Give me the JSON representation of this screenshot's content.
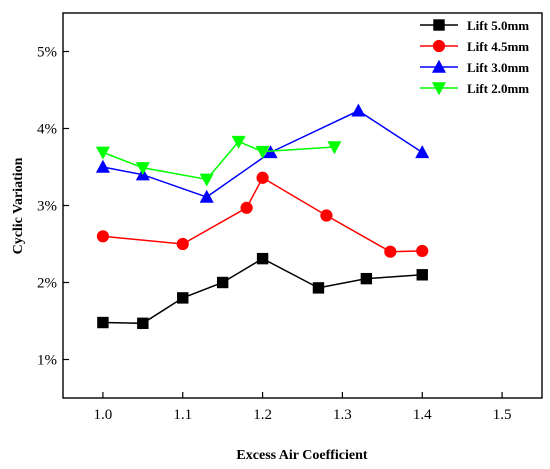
{
  "chart_data": {
    "type": "line",
    "title": "",
    "xlabel": "Excess Air Coefficient",
    "ylabel": "Cyclic Variation",
    "xlim": [
      0.95,
      1.55
    ],
    "ylim": [
      0.5,
      5.5
    ],
    "x_ticks": [
      1.0,
      1.1,
      1.2,
      1.3,
      1.4,
      1.5
    ],
    "x_tick_labels": [
      "1.0",
      "1.1",
      "1.2",
      "1.3",
      "1.4",
      "1.5"
    ],
    "y_ticks": [
      1,
      2,
      3,
      4,
      5
    ],
    "y_tick_labels": [
      "1%",
      "2%",
      "3%",
      "4%",
      "5%"
    ],
    "legend_position": "top-right",
    "grid": false,
    "series": [
      {
        "name": "Lift 5.0mm",
        "color": "#000000",
        "marker": "square",
        "x": [
          1.0,
          1.05,
          1.1,
          1.15,
          1.2,
          1.27,
          1.33,
          1.4
        ],
        "y": [
          1.48,
          1.47,
          1.8,
          2.0,
          2.31,
          1.93,
          2.05,
          2.1
        ]
      },
      {
        "name": "Lift 4.5mm",
        "color": "#ff0000",
        "marker": "circle",
        "x": [
          1.0,
          1.1,
          1.18,
          1.2,
          1.28,
          1.36,
          1.4
        ],
        "y": [
          2.6,
          2.5,
          2.97,
          3.36,
          2.87,
          2.4,
          2.41
        ]
      },
      {
        "name": "Lift 3.0mm",
        "color": "#0000ff",
        "marker": "triangle-up",
        "x": [
          1.0,
          1.05,
          1.13,
          1.21,
          1.32,
          1.4
        ],
        "y": [
          3.5,
          3.4,
          3.11,
          3.69,
          4.23,
          3.69
        ]
      },
      {
        "name": "Lift 2.0mm",
        "color": "#00ff00",
        "marker": "triangle-down",
        "x": [
          1.0,
          1.05,
          1.13,
          1.17,
          1.2,
          1.29
        ],
        "y": [
          3.69,
          3.49,
          3.34,
          3.83,
          3.7,
          3.76
        ]
      }
    ]
  }
}
